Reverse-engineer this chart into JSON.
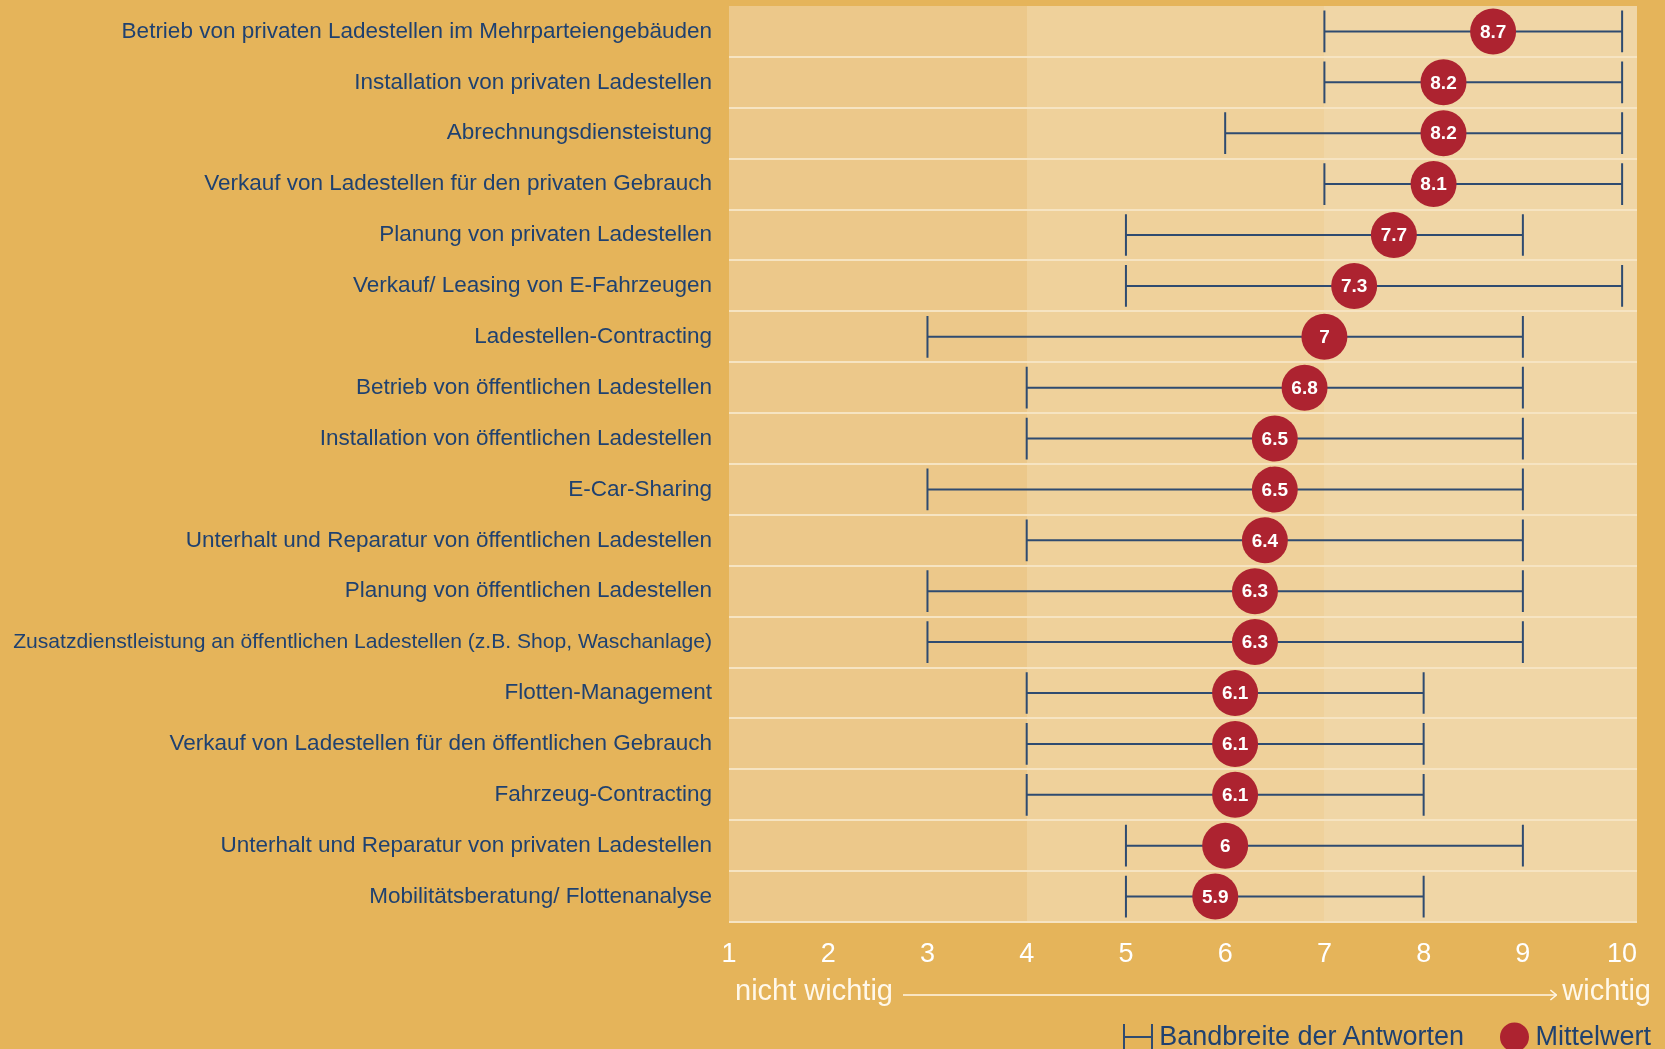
{
  "chart_data": {
    "type": "scatter",
    "orientation": "horizontal",
    "categories": [
      "Betrieb von privaten Ladestellen im Mehrparteiengebäuden",
      "Installation von privaten Ladestellen",
      "Abrechnungsdiensteistung",
      "Verkauf von Ladestellen für den privaten Gebrauch",
      "Planung von privaten Ladestellen",
      "Verkauf/ Leasing von E-Fahrzeugen",
      "Ladestellen-Contracting",
      "Betrieb von öffentlichen Ladestellen",
      "Installation von öffentlichen Ladestellen",
      "E-Car-Sharing",
      "Unterhalt und Reparatur von öffentlichen Ladestellen",
      "Planung von öffentlichen Ladestellen",
      "Zusatzdienstleistung an öffentlichen Ladestellen (z.B. Shop, Waschanlage)",
      "Flotten-Management",
      "Verkauf von Ladestellen für den öffentlichen Gebrauch",
      "Fahrzeug-Contracting",
      "Unterhalt und Reparatur von privaten Ladestellen",
      "Mobilitätsberatung/ Flottenanalyse"
    ],
    "series": [
      {
        "name": "Mittelwert",
        "color": "#ad2330",
        "values": [
          8.7,
          8.2,
          8.2,
          8.1,
          7.7,
          7.3,
          7,
          6.8,
          6.5,
          6.5,
          6.4,
          6.3,
          6.3,
          6.1,
          6.1,
          6.1,
          6,
          5.9
        ],
        "errors": [
          [
            7,
            10
          ],
          [
            7,
            10
          ],
          [
            6,
            10
          ],
          [
            7,
            10
          ],
          [
            5,
            9
          ],
          [
            5,
            10
          ],
          [
            3,
            9
          ],
          [
            4,
            9
          ],
          [
            4,
            9
          ],
          [
            3,
            9
          ],
          [
            4,
            9
          ],
          [
            3,
            9
          ],
          [
            3,
            9
          ],
          [
            4,
            8
          ],
          [
            4,
            8
          ],
          [
            4,
            8
          ],
          [
            5,
            9
          ],
          [
            5,
            8
          ]
        ],
        "value_labels": [
          "8.7",
          "8.2",
          "8.2",
          "8.1",
          "7.7",
          "7.3",
          "7",
          "6.8",
          "6.5",
          "6.5",
          "6.4",
          "6.3",
          "6.3",
          "6.1",
          "6.1",
          "6.1",
          "6",
          "5.9"
        ]
      }
    ],
    "xlim": [
      1,
      10.15
    ],
    "xticks": [
      1,
      2,
      3,
      4,
      5,
      6,
      7,
      8,
      9,
      10
    ],
    "bands": [
      {
        "axis": "x",
        "from": 1,
        "to": 4,
        "color": "#ecc88a"
      },
      {
        "axis": "x",
        "from": 4,
        "to": 7,
        "color": "#efd19b"
      },
      {
        "axis": "x",
        "from": 7,
        "to": 10.15,
        "color": "#f0d6a6"
      }
    ],
    "grid": "y",
    "legend": "bottom right",
    "marker": "circle",
    "annotations": [
      "nicht wichtig",
      "wichtig",
      "Bandbreite der Antworten"
    ]
  }
}
